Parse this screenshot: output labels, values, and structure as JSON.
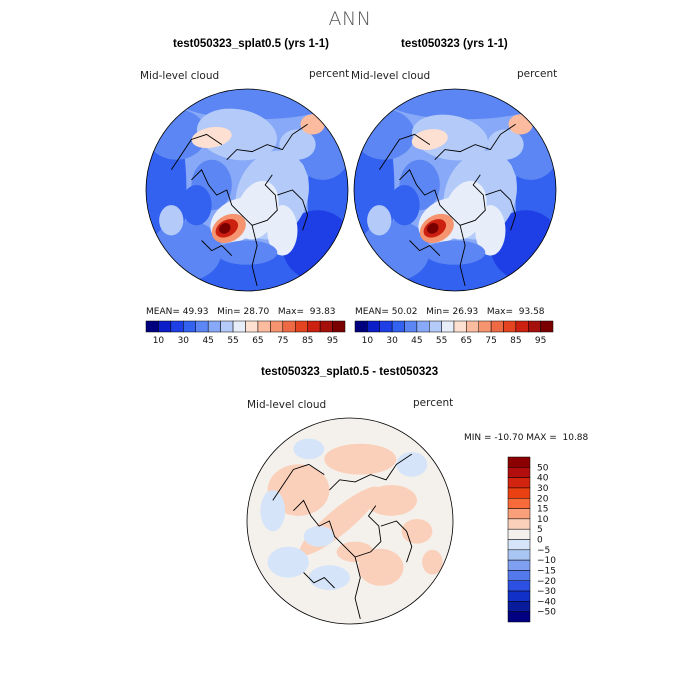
{
  "page_title": "ANN",
  "chart_data": [
    {
      "type": "heatmap",
      "projection": "north-polar-stereographic",
      "title": "test050323_splat0.5 (yrs 1-1)",
      "variable": "Mid-level cloud",
      "units": "percent",
      "stats": {
        "mean_label": "MEAN=",
        "mean": "49.93",
        "min_label": "Min=",
        "min": "28.70",
        "max_label": "Max=",
        "max": "93.83"
      },
      "colorbar_ticks": [
        "10",
        "30",
        "45",
        "55",
        "65",
        "75",
        "85",
        "95"
      ]
    },
    {
      "type": "heatmap",
      "projection": "north-polar-stereographic",
      "title": "test050323 (yrs 1-1)",
      "variable": "Mid-level cloud",
      "units": "percent",
      "stats": {
        "mean_label": "MEAN=",
        "mean": "50.02",
        "min_label": "Min=",
        "min": "26.93",
        "max_label": "Max=",
        "max": "93.58"
      },
      "colorbar_ticks": [
        "10",
        "30",
        "45",
        "55",
        "65",
        "75",
        "85",
        "95"
      ]
    },
    {
      "type": "heatmap",
      "projection": "north-polar-stereographic",
      "title": "test050323_splat0.5 - test050323",
      "variable": "Mid-level cloud",
      "units": "percent",
      "stats_text": "MIN = -10.70 MAX =  10.88",
      "colorbar_ticks": [
        "50",
        "40",
        "30",
        "20",
        "15",
        "10",
        "5",
        "0",
        "−5",
        "−10",
        "−15",
        "−20",
        "−30",
        "−40",
        "−50"
      ]
    }
  ],
  "colors": {
    "abs_scale": [
      "#00007f",
      "#0b1ec8",
      "#1f3fe6",
      "#3361f0",
      "#5b86f3",
      "#88a9f7",
      "#b4cbf9",
      "#e8eef9",
      "#fde0d2",
      "#fbbb9f",
      "#f6946f",
      "#ee6a44",
      "#e4441f",
      "#cc2010",
      "#a5100a",
      "#7a0000"
    ],
    "diff_scale": [
      "#8b0000",
      "#b30e0e",
      "#d2240f",
      "#eb4112",
      "#f86a3a",
      "#f9a07a",
      "#fbd0bb",
      "#f4f1ec",
      "#d5e4f8",
      "#a9c5f4",
      "#7f9ff0",
      "#5479ec",
      "#2c50e4",
      "#1030c8",
      "#071b9b",
      "#000080"
    ],
    "land_outline": "#000000"
  }
}
